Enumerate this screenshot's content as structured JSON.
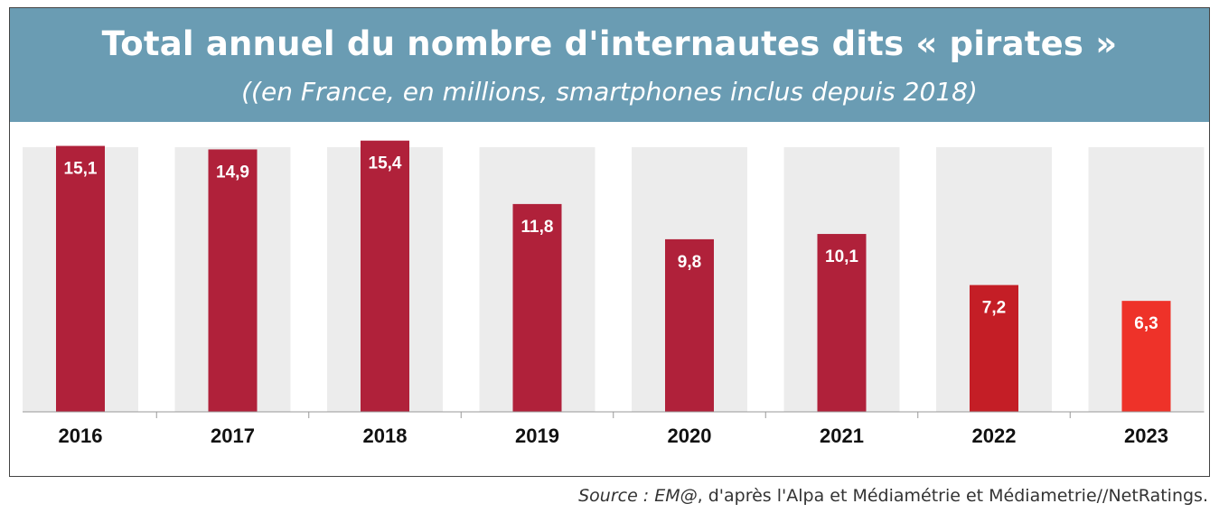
{
  "header": {
    "title": "Total annuel du nombre d'internautes dits « pirates »",
    "subtitle": "((en France, en millions, smartphones inclus depuis 2018)"
  },
  "source": {
    "label": "Source : EM@",
    "text": ", d'après l'Alpa et Médiamétrie et Médiametrie//NetRatings."
  },
  "colors": {
    "header_bg": "#6a9cb3",
    "bar_default": "#b0213a",
    "bar_2022": "#c41e26",
    "bar_2023": "#ee3229",
    "column_bg": "#ececec"
  },
  "chart_data": {
    "type": "bar",
    "categories": [
      "2016",
      "2017",
      "2018",
      "2019",
      "2020",
      "2021",
      "2022",
      "2023"
    ],
    "values": [
      15.1,
      14.9,
      15.4,
      11.8,
      9.8,
      10.1,
      7.2,
      6.3
    ],
    "data_labels": [
      "15,1",
      "14,9",
      "15,4",
      "11,8",
      "9,8",
      "10,1",
      "7,2",
      "6,3"
    ],
    "title": "Total annuel du nombre d'internautes dits « pirates »",
    "xlabel": "",
    "ylabel": "",
    "ylim": [
      0,
      16
    ],
    "grid": false,
    "legend": "none"
  }
}
